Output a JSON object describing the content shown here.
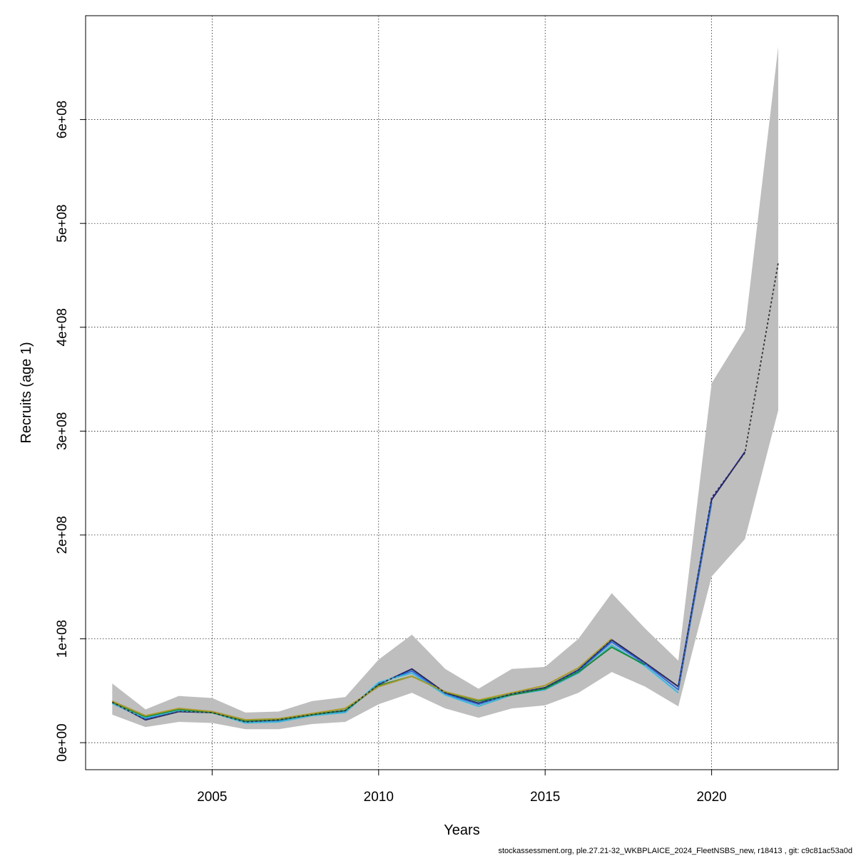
{
  "chart_data": {
    "type": "line",
    "title": "",
    "xlabel": "Years",
    "ylabel": "Recruits (age 1)",
    "xlim": [
      2001.2,
      2023.8
    ],
    "ylim": [
      -26000000,
      700000000
    ],
    "x_ticks": [
      2005,
      2010,
      2015,
      2020
    ],
    "x_tick_labels": [
      "2005",
      "2010",
      "2015",
      "2020"
    ],
    "y_ticks": [
      0,
      100000000,
      200000000,
      300000000,
      400000000,
      500000000,
      600000000
    ],
    "y_tick_labels": [
      "0e+00",
      "1e+08",
      "2e+08",
      "3e+08",
      "4e+08",
      "5e+08",
      "6e+08"
    ],
    "grid": true,
    "x": [
      2002,
      2003,
      2004,
      2005,
      2006,
      2007,
      2008,
      2009,
      2010,
      2011,
      2012,
      2013,
      2014,
      2015,
      2016,
      2017,
      2018,
      2019,
      2020,
      2021,
      2022
    ],
    "band_colour": "#bebebe",
    "ci_band": {
      "upper": [
        57000000,
        32000000,
        45000000,
        43000000,
        29000000,
        30000000,
        40000000,
        44000000,
        80000000,
        104000000,
        71000000,
        52000000,
        71000000,
        73000000,
        100000000,
        144000000,
        110000000,
        79000000,
        346000000,
        398000000,
        670000000
      ],
      "lower": [
        27000000,
        15000000,
        20000000,
        19000000,
        13000000,
        13000000,
        18000000,
        20000000,
        37000000,
        48000000,
        33000000,
        24000000,
        33000000,
        36000000,
        48000000,
        68000000,
        54000000,
        35000000,
        160000000,
        196000000,
        320000000
      ]
    },
    "series": [
      {
        "color": "#1f1f8f",
        "dashed": false,
        "values": [
          39000000,
          22000000,
          30000000,
          29000000,
          20000000,
          22000000,
          27000000,
          31000000,
          56000000,
          71000000,
          48000000,
          38000000,
          47000000,
          53000000,
          70000000,
          99000000,
          77000000,
          54000000,
          234000000,
          280000000,
          null
        ]
      },
      {
        "color": "#2a6fe0",
        "dashed": false,
        "values": [
          38000000,
          23000000,
          31000000,
          29000000,
          20000000,
          21000000,
          27000000,
          30000000,
          57000000,
          69000000,
          47000000,
          37000000,
          47000000,
          52000000,
          69000000,
          97000000,
          76000000,
          51000000,
          231000000,
          null,
          null
        ]
      },
      {
        "color": "#3fb8d8",
        "dashed": false,
        "values": [
          38000000,
          24000000,
          31000000,
          29000000,
          19000000,
          20000000,
          26000000,
          29000000,
          58000000,
          67000000,
          46000000,
          35000000,
          46000000,
          51000000,
          67000000,
          94000000,
          74000000,
          48000000,
          null,
          null,
          null
        ]
      },
      {
        "color": "#1a8a3a",
        "dashed": false,
        "values": [
          39000000,
          25000000,
          32000000,
          29000000,
          21000000,
          22000000,
          27000000,
          31000000,
          55000000,
          64000000,
          49000000,
          40000000,
          46000000,
          52000000,
          68000000,
          92000000,
          75000000,
          null,
          null,
          null,
          null
        ]
      },
      {
        "color": "#a89a2a",
        "dashed": false,
        "values": [
          40000000,
          26000000,
          33000000,
          30000000,
          22000000,
          23000000,
          28000000,
          33000000,
          54000000,
          64000000,
          49000000,
          41000000,
          48000000,
          55000000,
          72000000,
          100000000,
          null,
          null,
          null,
          null,
          null
        ]
      },
      {
        "color": "#333333",
        "dashed": true,
        "values": [
          39000000,
          22000000,
          30000000,
          29000000,
          20000000,
          22000000,
          27000000,
          31000000,
          56000000,
          71000000,
          48000000,
          38000000,
          47000000,
          53000000,
          70000000,
          99000000,
          77000000,
          54000000,
          236000000,
          279000000,
          462000000
        ]
      }
    ]
  },
  "footer": "stockassessment.org, ple.27.21-32_WKBPLAICE_2024_FleetNSBS_new, r18413 , git: c9c81ac53a0d"
}
